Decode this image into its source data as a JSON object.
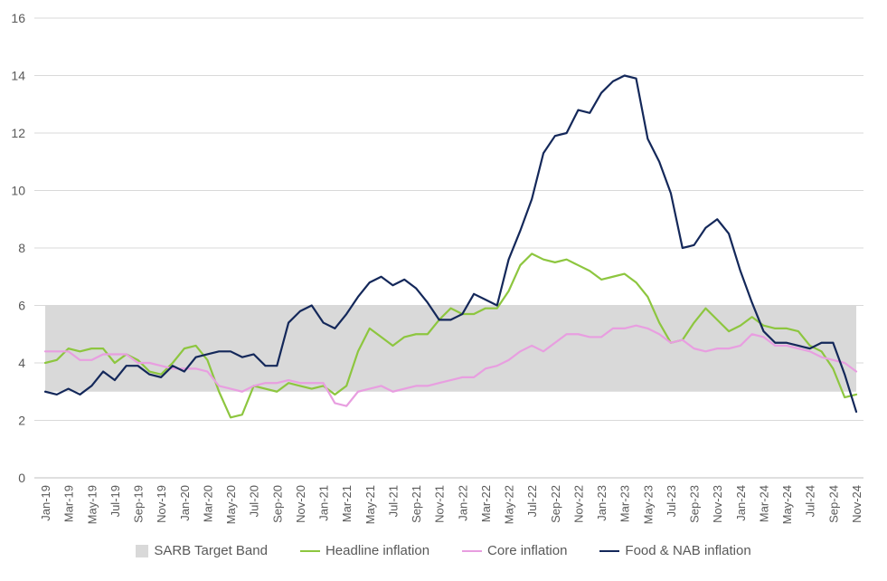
{
  "chart_data": {
    "type": "line",
    "title": "",
    "xlabel": "",
    "ylabel": "",
    "ylim": [
      0,
      16
    ],
    "yticks": [
      0,
      2,
      4,
      6,
      8,
      10,
      12,
      14,
      16
    ],
    "grid": true,
    "legend_position": "bottom",
    "x": [
      "Jan-19",
      "Feb-19",
      "Mar-19",
      "Apr-19",
      "May-19",
      "Jun-19",
      "Jul-19",
      "Aug-19",
      "Sep-19",
      "Oct-19",
      "Nov-19",
      "Dec-19",
      "Jan-20",
      "Feb-20",
      "Mar-20",
      "Apr-20",
      "May-20",
      "Jun-20",
      "Jul-20",
      "Aug-20",
      "Sep-20",
      "Oct-20",
      "Nov-20",
      "Dec-20",
      "Jan-21",
      "Feb-21",
      "Mar-21",
      "Apr-21",
      "May-21",
      "Jun-21",
      "Jul-21",
      "Aug-21",
      "Sep-21",
      "Oct-21",
      "Nov-21",
      "Dec-21",
      "Jan-22",
      "Feb-22",
      "Mar-22",
      "Apr-22",
      "May-22",
      "Jun-22",
      "Jul-22",
      "Aug-22",
      "Sep-22",
      "Oct-22",
      "Nov-22",
      "Dec-22",
      "Jan-23",
      "Feb-23",
      "Mar-23",
      "Apr-23",
      "May-23",
      "Jun-23",
      "Jul-23",
      "Aug-23",
      "Sep-23",
      "Oct-23",
      "Nov-23",
      "Dec-23",
      "Jan-24",
      "Feb-24",
      "Mar-24",
      "Apr-24",
      "May-24",
      "Jun-24",
      "Jul-24",
      "Aug-24",
      "Sep-24",
      "Oct-24",
      "Nov-24"
    ],
    "xtick_labels": [
      "Jan-19",
      "Mar-19",
      "May-19",
      "Jul-19",
      "Sep-19",
      "Nov-19",
      "Jan-20",
      "Mar-20",
      "May-20",
      "Jul-20",
      "Sep-20",
      "Nov-20",
      "Jan-21",
      "Mar-21",
      "May-21",
      "Jul-21",
      "Sep-21",
      "Nov-21",
      "Jan-22",
      "Mar-22",
      "May-22",
      "Jul-22",
      "Sep-22",
      "Nov-22",
      "Jan-23",
      "Mar-23",
      "May-23",
      "Jul-23",
      "Sep-23",
      "Nov-23",
      "Jan-24",
      "Mar-24",
      "May-24",
      "Jul-24",
      "Sep-24",
      "Nov-24"
    ],
    "band": {
      "name": "SARB Target Band",
      "low": 3,
      "high": 6,
      "color": "#d9d9d9"
    },
    "series": [
      {
        "name": "Headline inflation",
        "color": "#8dc63f",
        "values": [
          4.0,
          4.1,
          4.5,
          4.4,
          4.5,
          4.5,
          4.0,
          4.3,
          4.1,
          3.7,
          3.6,
          4.0,
          4.5,
          4.6,
          4.1,
          3.0,
          2.1,
          2.2,
          3.2,
          3.1,
          3.0,
          3.3,
          3.2,
          3.1,
          3.2,
          2.9,
          3.2,
          4.4,
          5.2,
          4.9,
          4.6,
          4.9,
          5.0,
          5.0,
          5.5,
          5.9,
          5.7,
          5.7,
          5.9,
          5.9,
          6.5,
          7.4,
          7.8,
          7.6,
          7.5,
          7.6,
          7.4,
          7.2,
          6.9,
          7.0,
          7.1,
          6.8,
          6.3,
          5.4,
          4.7,
          4.8,
          5.4,
          5.9,
          5.5,
          5.1,
          5.3,
          5.6,
          5.3,
          5.2,
          5.2,
          5.1,
          4.6,
          4.4,
          3.8,
          2.8,
          2.9
        ]
      },
      {
        "name": "Core inflation",
        "color": "#e89ee0",
        "values": [
          4.4,
          4.4,
          4.4,
          4.1,
          4.1,
          4.3,
          4.3,
          4.3,
          4.0,
          4.0,
          3.9,
          3.8,
          3.8,
          3.8,
          3.7,
          3.2,
          3.1,
          3.0,
          3.2,
          3.3,
          3.3,
          3.4,
          3.3,
          3.3,
          3.3,
          2.6,
          2.5,
          3.0,
          3.1,
          3.2,
          3.0,
          3.1,
          3.2,
          3.2,
          3.3,
          3.4,
          3.5,
          3.5,
          3.8,
          3.9,
          4.1,
          4.4,
          4.6,
          4.4,
          4.7,
          5.0,
          5.0,
          4.9,
          4.9,
          5.2,
          5.2,
          5.3,
          5.2,
          5.0,
          4.7,
          4.8,
          4.5,
          4.4,
          4.5,
          4.5,
          4.6,
          5.0,
          4.9,
          4.6,
          4.6,
          4.5,
          4.4,
          4.2,
          4.1,
          4.0,
          3.7
        ]
      },
      {
        "name": "Food & NAB inflation",
        "color": "#14285a",
        "values": [
          3.0,
          2.9,
          3.1,
          2.9,
          3.2,
          3.7,
          3.4,
          3.9,
          3.9,
          3.6,
          3.5,
          3.9,
          3.7,
          4.2,
          4.3,
          4.4,
          4.4,
          4.2,
          4.3,
          3.9,
          3.9,
          5.4,
          5.8,
          6.0,
          5.4,
          5.2,
          5.7,
          6.3,
          6.8,
          7.0,
          6.7,
          6.9,
          6.6,
          6.1,
          5.5,
          5.5,
          5.7,
          6.4,
          6.2,
          6.0,
          7.6,
          8.6,
          9.7,
          11.3,
          11.9,
          12.0,
          12.8,
          12.7,
          13.4,
          13.8,
          14.0,
          13.9,
          11.8,
          11.0,
          9.9,
          8.0,
          8.1,
          8.7,
          9.0,
          8.5,
          7.2,
          6.1,
          5.1,
          4.7,
          4.7,
          4.6,
          4.5,
          4.7,
          4.7,
          3.6,
          2.3
        ]
      }
    ]
  }
}
